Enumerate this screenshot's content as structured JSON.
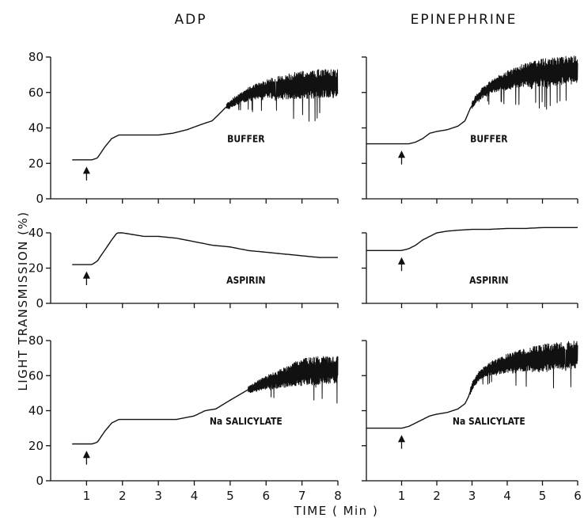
{
  "figure": {
    "column_titles": [
      "ADP",
      "EPINEPHRINE"
    ],
    "y_axis_title": "LIGHT   TRANSMISSION  (%)",
    "x_axis_title": "TIME  ( Min )"
  },
  "chart_data": [
    {
      "type": "line",
      "column": "ADP",
      "row": 1,
      "label": "BUFFER",
      "xlim": [
        0,
        8
      ],
      "ylim": [
        0,
        80
      ],
      "xticks": [
        1,
        2,
        3,
        4,
        5,
        6,
        7,
        8
      ],
      "yticks": [
        0,
        20,
        40,
        60,
        80
      ],
      "show_xtick_labels": false,
      "show_yticks": true,
      "noise_start_x": 4.9,
      "arrow_x": 1.0,
      "x": [
        1.0,
        1.15,
        1.3,
        1.5,
        1.7,
        1.9,
        2.2,
        2.6,
        3.0,
        3.4,
        3.8,
        4.2,
        4.5,
        4.7,
        4.9,
        5.2,
        5.5,
        6.0,
        6.5,
        7.0,
        7.5,
        8.0
      ],
      "y": [
        22,
        22,
        23,
        29,
        34,
        36,
        36,
        36,
        36,
        37,
        39,
        42,
        44,
        48,
        52,
        56,
        59,
        62,
        63,
        64,
        65,
        65
      ]
    },
    {
      "type": "line",
      "column": "EPINEPHRINE",
      "row": 1,
      "label": "BUFFER",
      "xlim": [
        0,
        6
      ],
      "ylim": [
        0,
        80
      ],
      "xticks": [
        1,
        2,
        3,
        4,
        5,
        6
      ],
      "yticks": [
        0,
        20,
        40,
        60,
        80
      ],
      "show_xtick_labels": false,
      "show_yticks": false,
      "noise_start_x": 3.0,
      "arrow_x": 1.0,
      "x": [
        0.0,
        1.0,
        1.2,
        1.4,
        1.6,
        1.8,
        2.0,
        2.3,
        2.6,
        2.8,
        2.95,
        3.1,
        3.3,
        3.6,
        4.0,
        4.5,
        5.0,
        5.5,
        6.0
      ],
      "y": [
        31,
        31,
        31,
        32,
        34,
        37,
        38,
        39,
        41,
        44,
        51,
        56,
        60,
        64,
        67,
        70,
        71,
        72,
        73
      ]
    },
    {
      "type": "line",
      "column": "ADP",
      "row": 2,
      "label": "ASPIRIN",
      "xlim": [
        0,
        8
      ],
      "ylim": [
        0,
        40
      ],
      "xticks": [
        1,
        2,
        3,
        4,
        5,
        6,
        7,
        8
      ],
      "yticks": [
        0,
        20,
        40
      ],
      "show_xtick_labels": false,
      "show_yticks": true,
      "noise_start_x": null,
      "arrow_x": 1.0,
      "x": [
        1.0,
        1.15,
        1.3,
        1.5,
        1.7,
        1.85,
        2.0,
        2.3,
        2.6,
        3.0,
        3.5,
        4.0,
        4.5,
        5.0,
        5.5,
        6.0,
        6.5,
        7.0,
        7.5,
        8.0
      ],
      "y": [
        22,
        22,
        24,
        30,
        36,
        40,
        40,
        39,
        38,
        38,
        37,
        35,
        33,
        32,
        30,
        29,
        28,
        27,
        26,
        26
      ]
    },
    {
      "type": "line",
      "column": "EPINEPHRINE",
      "row": 2,
      "label": "ASPIRIN",
      "xlim": [
        0,
        6
      ],
      "ylim": [
        0,
        40
      ],
      "xticks": [
        1,
        2,
        3,
        4,
        5,
        6
      ],
      "yticks": [
        0,
        20,
        40
      ],
      "show_xtick_labels": false,
      "show_yticks": false,
      "noise_start_x": null,
      "arrow_x": 1.0,
      "x": [
        0.0,
        1.0,
        1.2,
        1.4,
        1.6,
        1.8,
        2.0,
        2.3,
        2.6,
        3.0,
        3.5,
        4.0,
        4.5,
        5.0,
        5.5,
        6.0
      ],
      "y": [
        30,
        30,
        31,
        33,
        36,
        38,
        40,
        41,
        41.5,
        42,
        42,
        42.5,
        42.5,
        43,
        43,
        43
      ]
    },
    {
      "type": "line",
      "column": "ADP",
      "row": 3,
      "label": "Na SALICYLATE",
      "xlim": [
        0,
        8
      ],
      "ylim": [
        0,
        80
      ],
      "xticks": [
        1,
        2,
        3,
        4,
        5,
        6,
        7,
        8
      ],
      "yticks": [
        0,
        20,
        40,
        60,
        80
      ],
      "show_xtick_labels": true,
      "show_yticks": true,
      "noise_start_x": 5.5,
      "arrow_x": 1.0,
      "x": [
        1.0,
        1.15,
        1.3,
        1.5,
        1.7,
        1.9,
        2.2,
        2.6,
        3.0,
        3.5,
        4.0,
        4.3,
        4.6,
        5.0,
        5.5,
        6.0,
        6.5,
        7.0,
        7.5,
        8.0
      ],
      "y": [
        21,
        21,
        22,
        28,
        33,
        35,
        35,
        35,
        35,
        35,
        37,
        40,
        41,
        46,
        52,
        56,
        59,
        62,
        63,
        64
      ]
    },
    {
      "type": "line",
      "column": "EPINEPHRINE",
      "row": 3,
      "label": "Na SALICYLATE",
      "xlim": [
        0,
        6
      ],
      "ylim": [
        0,
        80
      ],
      "xticks": [
        1,
        2,
        3,
        4,
        5,
        6
      ],
      "yticks": [
        0,
        20,
        40,
        60,
        80
      ],
      "show_xtick_labels": true,
      "show_yticks": false,
      "noise_start_x": 2.95,
      "arrow_x": 1.0,
      "x": [
        0.0,
        1.0,
        1.2,
        1.4,
        1.6,
        1.8,
        2.0,
        2.3,
        2.6,
        2.8,
        2.9,
        3.0,
        3.2,
        3.5,
        4.0,
        4.5,
        5.0,
        5.5,
        6.0
      ],
      "y": [
        30,
        30,
        31,
        33,
        35,
        37,
        38,
        39,
        41,
        44,
        48,
        54,
        60,
        64,
        67,
        69,
        70,
        71,
        72
      ]
    }
  ]
}
